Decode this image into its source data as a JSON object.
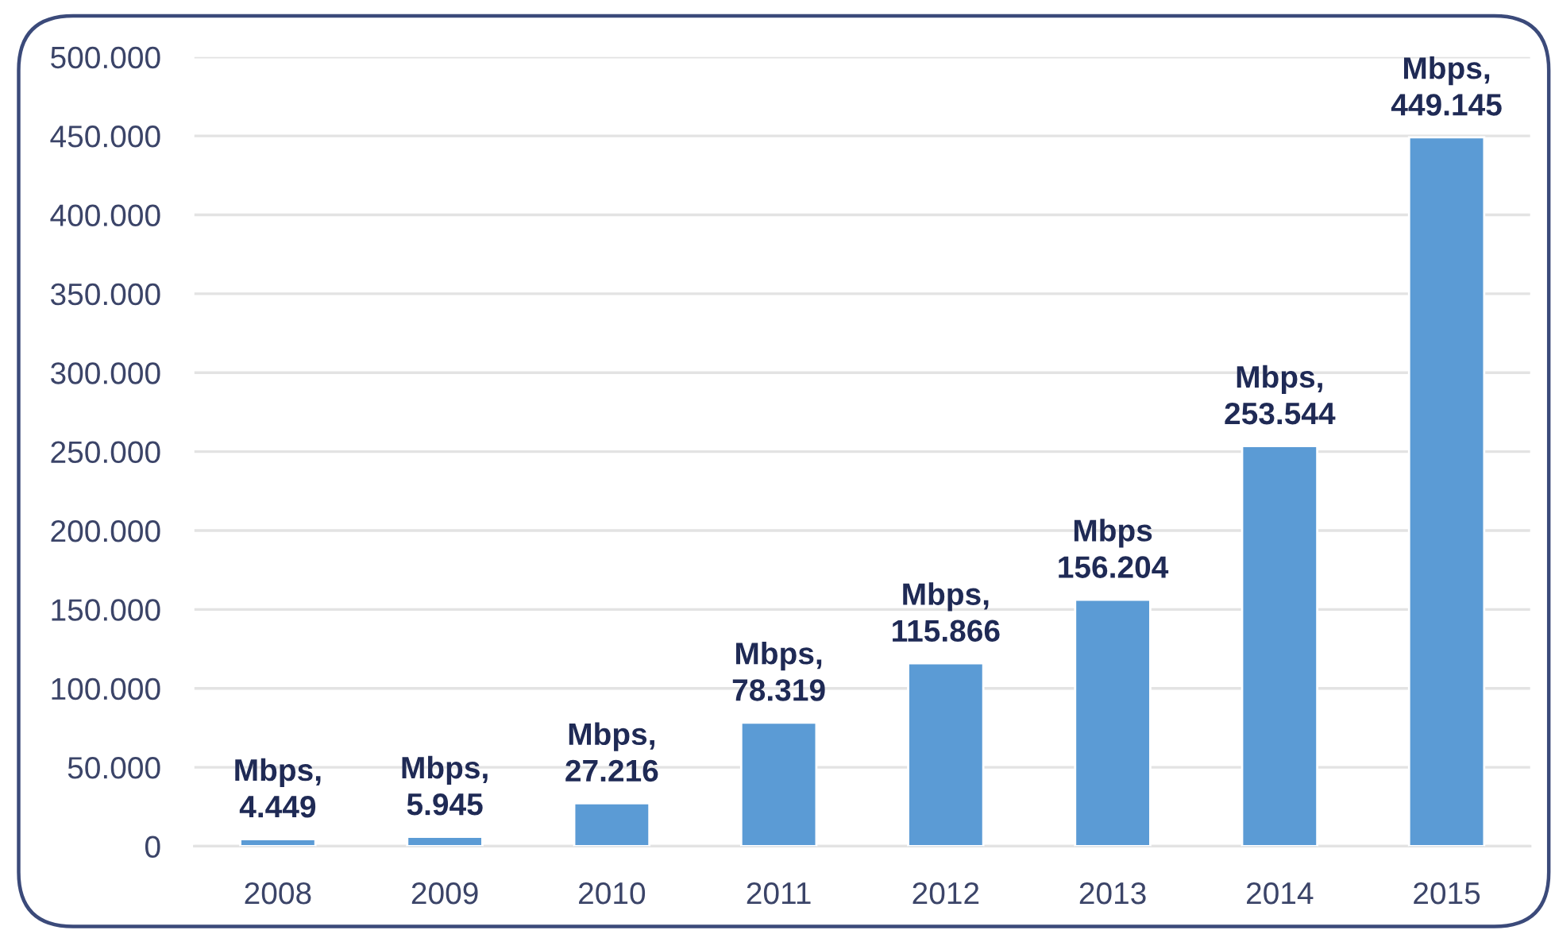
{
  "chart_data": {
    "type": "bar",
    "categories": [
      "2008",
      "2009",
      "2010",
      "2011",
      "2012",
      "2013",
      "2014",
      "2015"
    ],
    "values": [
      4449,
      5945,
      27216,
      78319,
      115866,
      156204,
      253544,
      449145
    ],
    "color": "#5b9bd5",
    "ylim": [
      0,
      500000
    ],
    "yticks": [
      0,
      {
        "value": 50000,
        "label": "50.000"
      },
      {
        "value": 100000,
        "label": "100.000"
      },
      {
        "value": 150000,
        "label": "150.000"
      },
      {
        "value": 200000,
        "label": "200.000"
      },
      {
        "value": 250000,
        "label": "250.000"
      },
      {
        "value": 300000,
        "label": "300.000"
      },
      {
        "value": 350000,
        "label": "350.000"
      },
      {
        "value": 400000,
        "label": "400.000"
      },
      {
        "value": 450000,
        "label": "450.000"
      },
      {
        "value": 500000,
        "label": "500.000"
      }
    ],
    "grid": "y",
    "value_labels": [
      "Mbps,\n4.449",
      "Mbps,\n5.945",
      "Mbps,\n27.216",
      "Mbps,\n78.319",
      "Mbps,\n115.866",
      "Mbps\n156.204",
      "Mbps,\n253.544",
      "Mbps,\n449.145"
    ]
  }
}
